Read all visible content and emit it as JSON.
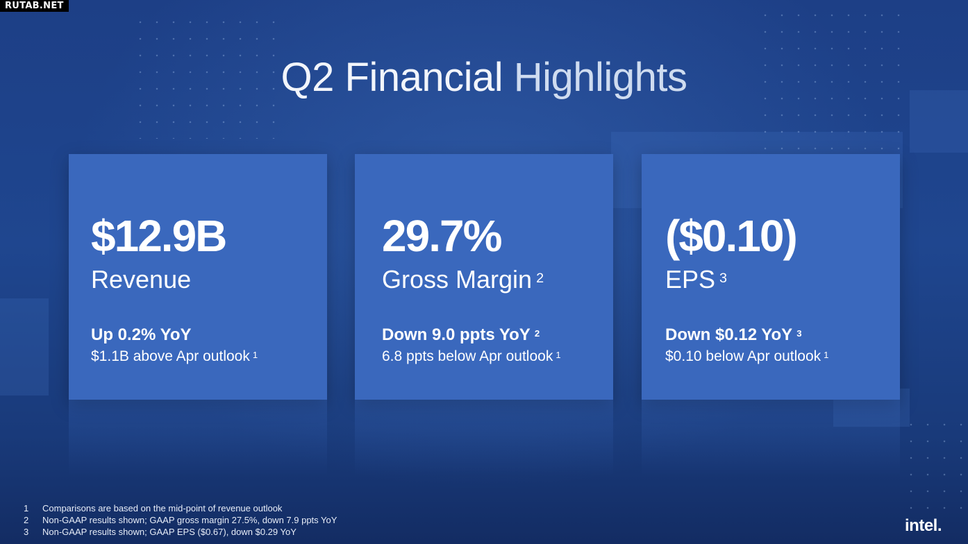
{
  "watermark": "RUTAB.NET",
  "title": {
    "part1": "Q2 Financial ",
    "part2": "Highlights"
  },
  "cards": [
    {
      "value": "$12.9B",
      "label": "Revenue",
      "label_note": "",
      "line1": "Up 0.2% YoY",
      "line1_note": "",
      "line2": "$1.1B above Apr outlook",
      "line2_note": "1"
    },
    {
      "value": "29.7%",
      "label": "Gross Margin",
      "label_note": "2",
      "line1": "Down 9.0 ppts YoY",
      "line1_note": "2",
      "line2": "6.8 ppts below Apr outlook",
      "line2_note": "1"
    },
    {
      "value": "($0.10)",
      "label": "EPS",
      "label_note": "3",
      "line1": "Down $0.12 YoY",
      "line1_note": "3",
      "line2": "$0.10 below Apr outlook",
      "line2_note": "1"
    }
  ],
  "footnotes": [
    {
      "num": "1",
      "text": "Comparisons are based on the mid-point of revenue outlook"
    },
    {
      "num": "2",
      "text": "Non-GAAP results shown; GAAP gross margin 27.5%, down 7.9 ppts YoY"
    },
    {
      "num": "3",
      "text": "Non-GAAP results shown; GAAP EPS ($0.67), down $0.29 YoY"
    }
  ],
  "logo": "intel."
}
